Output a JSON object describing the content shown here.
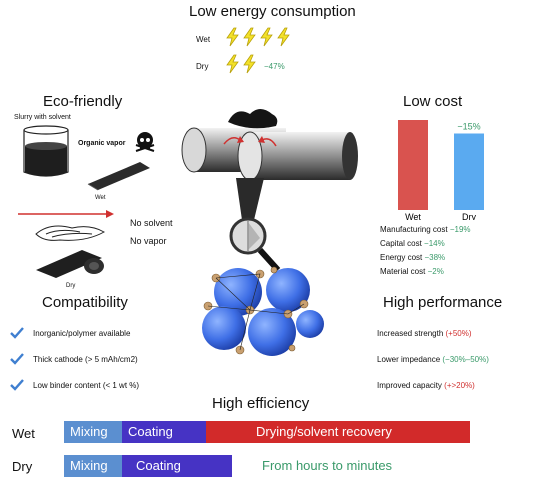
{
  "energy": {
    "title": "Low energy consumption",
    "wet_label": "Wet",
    "dry_label": "Dry",
    "reduction": "−47%",
    "wet_bolts": 4,
    "dry_bolts": 2
  },
  "eco": {
    "title": "Eco-friendly",
    "slurry": "Slurry with solvent",
    "vapor": "Organic vapor",
    "wet": "Wet",
    "no_solvent": "No solvent",
    "no_vapor": "No vapor",
    "dry": "Dry"
  },
  "cost": {
    "title": "Low cost",
    "diff": "−15%",
    "items": [
      {
        "name": "Manufacturing cost",
        "value": "−19%"
      },
      {
        "name": "Capital cost",
        "value": "−14%"
      },
      {
        "name": "Energy cost",
        "value": "−38%"
      },
      {
        "name": "Material cost",
        "value": "−2%"
      }
    ]
  },
  "chart_data": {
    "type": "bar",
    "categories": [
      "Wet",
      "Dry"
    ],
    "values": [
      100,
      85
    ],
    "colors": [
      "#d9534f",
      "#5aaaf0"
    ],
    "annotation": "−15%"
  },
  "compat": {
    "title": "Compatibility",
    "items": [
      "Inorganic/polymer available",
      "Thick cathode (> 5 mAh/cm2)",
      "Low binder content (< 1 wt %)"
    ]
  },
  "perf": {
    "title": "High performance",
    "items": [
      {
        "name": "Increased strength",
        "value": "(+50%)"
      },
      {
        "name": "Lower impedance",
        "value": "(−30%–50%)"
      },
      {
        "name": "Improved capacity",
        "value": "(+>20%)"
      }
    ]
  },
  "efficiency": {
    "title": "High efficiency",
    "wet_label": "Wet",
    "dry_label": "Dry",
    "mixing": "Mixing",
    "coating": "Coating",
    "drying": "Drying/solvent recovery",
    "note": "From hours to minutes"
  },
  "colors": {
    "mixing": "#5b8fd0",
    "coating": "#4633c4",
    "drying": "#d22a2a",
    "green": "#3a9a6a"
  }
}
